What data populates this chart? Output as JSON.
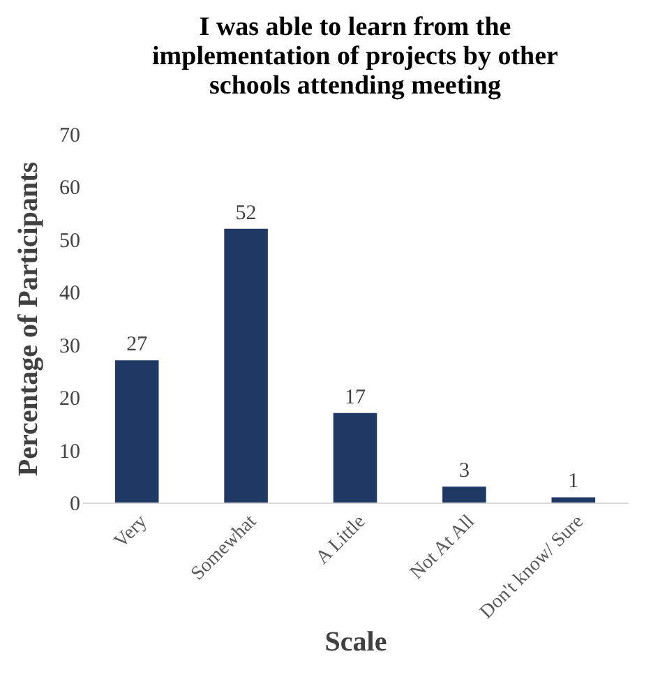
{
  "chart_data": {
    "type": "bar",
    "title": "I was able to learn from the implementation of projects by other schools attending meeting",
    "xlabel": "Scale",
    "ylabel": "Percentage of Participants",
    "categories": [
      "Very",
      "Somewhat",
      "A Little",
      "Not At All",
      "Don't know/ Sure"
    ],
    "values": [
      27,
      52,
      17,
      3,
      1
    ],
    "color": "#203864",
    "ylim": [
      0,
      70
    ],
    "yticks": [
      0,
      10,
      20,
      30,
      40,
      50,
      60,
      70
    ],
    "data_labels": true,
    "grid": false
  }
}
